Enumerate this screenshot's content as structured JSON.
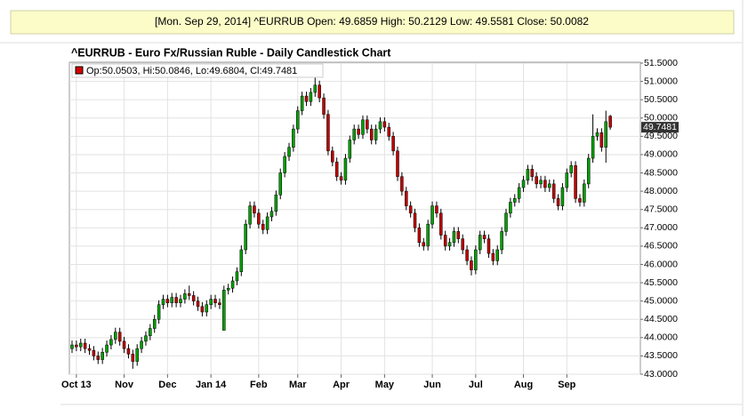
{
  "header": {
    "text": "[Mon. Sep 29, 2014] ^EURRUB Open: 49.6859 High: 50.2129 Low: 49.5581 Close: 50.0082"
  },
  "chart_data": {
    "type": "candlestick",
    "title": "^EURRUB - Euro Fx/Russian Ruble - Daily Candlestick Chart",
    "legend": "Op:50.0503, Hi:50.0846, Lo:49.6804, Cl:49.7481",
    "legend_color": "#d40000",
    "up_color": "#00a000",
    "down_color": "#c00000",
    "grid": true,
    "last_value": 49.7481,
    "ylim": [
      43,
      51.5
    ],
    "yticks": [
      {
        "value": 43,
        "label": "43.0000"
      },
      {
        "value": 43.5,
        "label": "43.5000"
      },
      {
        "value": 44,
        "label": "44.0000"
      },
      {
        "value": 44.5,
        "label": "44.5000"
      },
      {
        "value": 45,
        "label": "45.0000"
      },
      {
        "value": 45.5,
        "label": "45.5000"
      },
      {
        "value": 46,
        "label": "46.0000"
      },
      {
        "value": 46.5,
        "label": "46.5000"
      },
      {
        "value": 47,
        "label": "47.0000"
      },
      {
        "value": 47.5,
        "label": "47.5000"
      },
      {
        "value": 48,
        "label": "48.0000"
      },
      {
        "value": 48.5,
        "label": "48.5000"
      },
      {
        "value": 49,
        "label": "49.0000"
      },
      {
        "value": 49.5,
        "label": "49.5000"
      },
      {
        "value": 50,
        "label": "50.0000"
      },
      {
        "value": 50.5,
        "label": "50.5000"
      },
      {
        "value": 51,
        "label": "51.0000"
      },
      {
        "value": 51.5,
        "label": "51.5000"
      }
    ],
    "categories": [
      null,
      "Oct 13",
      null,
      null,
      null,
      null,
      null,
      null,
      null,
      null,
      null,
      null,
      "Nov",
      null,
      null,
      null,
      null,
      null,
      null,
      null,
      null,
      null,
      "Dec",
      null,
      null,
      null,
      null,
      null,
      null,
      null,
      null,
      null,
      "Jan 14",
      null,
      null,
      null,
      null,
      null,
      null,
      null,
      null,
      null,
      null,
      "Feb",
      null,
      null,
      null,
      null,
      null,
      null,
      null,
      null,
      "Mar",
      null,
      null,
      null,
      null,
      null,
      null,
      null,
      null,
      null,
      "Apr",
      null,
      null,
      null,
      null,
      null,
      null,
      null,
      null,
      null,
      "May",
      null,
      null,
      null,
      null,
      null,
      null,
      null,
      null,
      null,
      null,
      "Jun",
      null,
      null,
      null,
      null,
      null,
      null,
      null,
      null,
      null,
      "Jul",
      null,
      null,
      null,
      null,
      null,
      null,
      null,
      null,
      null,
      null,
      "Aug",
      null,
      null,
      null,
      null,
      null,
      null,
      null,
      null,
      null,
      "Sep",
      null,
      null,
      null,
      null,
      null,
      null,
      null,
      null,
      null,
      null
    ],
    "open": [
      43.7,
      43.8,
      43.75,
      43.85,
      43.7,
      43.65,
      43.5,
      43.4,
      43.6,
      43.8,
      43.95,
      44.15,
      43.9,
      43.7,
      43.55,
      43.35,
      43.7,
      43.9,
      44.05,
      44.25,
      44.5,
      44.9,
      45.05,
      44.95,
      45.1,
      44.95,
      45.05,
      45.2,
      45.15,
      45.0,
      44.85,
      44.7,
      44.9,
      45.05,
      44.95,
      44.2,
      45.3,
      45.35,
      45.55,
      45.8,
      46.4,
      47.1,
      47.6,
      47.4,
      47.1,
      46.95,
      47.3,
      47.45,
      47.9,
      48.5,
      48.95,
      49.2,
      49.7,
      50.2,
      50.6,
      50.45,
      50.7,
      50.9,
      50.55,
      50.1,
      49.1,
      48.8,
      48.4,
      48.3,
      48.9,
      49.4,
      49.7,
      49.55,
      49.95,
      49.7,
      49.4,
      49.7,
      49.9,
      49.75,
      49.5,
      49.1,
      48.4,
      48.0,
      47.6,
      47.4,
      47.0,
      46.6,
      46.5,
      47.1,
      47.6,
      47.4,
      46.8,
      46.5,
      46.6,
      46.9,
      46.7,
      46.4,
      46.1,
      45.85,
      46.4,
      46.8,
      46.7,
      46.3,
      46.1,
      46.4,
      46.9,
      47.4,
      47.7,
      47.8,
      48.1,
      48.3,
      48.6,
      48.4,
      48.2,
      48.3,
      48.1,
      48.2,
      47.8,
      47.6,
      48.1,
      48.5,
      48.7,
      47.8,
      47.7,
      48.2,
      48.9,
      49.5,
      49.6,
      49.2,
      50.0503
    ],
    "high": [
      43.92,
      43.92,
      43.97,
      43.97,
      43.82,
      43.77,
      43.62,
      43.72,
      43.92,
      44.07,
      44.27,
      44.27,
      44.02,
      43.82,
      43.67,
      43.82,
      44.02,
      44.17,
      44.37,
      44.62,
      45.02,
      45.17,
      45.17,
      45.22,
      45.22,
      45.17,
      45.32,
      45.42,
      45.27,
      45.12,
      44.97,
      45.02,
      45.17,
      45.17,
      45.07,
      45.42,
      45.47,
      45.67,
      45.92,
      46.52,
      47.22,
      47.72,
      47.72,
      47.52,
      47.22,
      47.42,
      47.57,
      48.02,
      48.62,
      49.07,
      49.32,
      49.82,
      50.32,
      50.72,
      50.72,
      50.82,
      51.1,
      51.02,
      50.67,
      50.22,
      49.22,
      48.92,
      48.52,
      49.02,
      49.52,
      49.82,
      49.82,
      50.07,
      50.07,
      49.82,
      49.82,
      50.02,
      50.02,
      49.87,
      49.62,
      49.22,
      48.52,
      48.12,
      47.72,
      47.52,
      47.12,
      46.72,
      47.22,
      47.72,
      47.72,
      47.52,
      46.92,
      46.72,
      47.02,
      47.02,
      46.82,
      46.52,
      46.22,
      46.52,
      46.92,
      46.92,
      46.82,
      46.42,
      46.52,
      47.02,
      47.52,
      47.82,
      47.92,
      48.22,
      48.42,
      48.72,
      48.72,
      48.52,
      48.42,
      48.42,
      48.32,
      48.32,
      47.92,
      48.22,
      48.62,
      48.82,
      48.82,
      47.92,
      48.32,
      49.02,
      50.1,
      49.72,
      49.72,
      50.2,
      50.0846
    ],
    "low": [
      43.58,
      43.63,
      43.63,
      43.58,
      43.53,
      43.38,
      43.28,
      43.28,
      43.48,
      43.68,
      43.83,
      43.78,
      43.58,
      43.43,
      43.15,
      43.23,
      43.58,
      43.78,
      43.93,
      44.13,
      44.38,
      44.78,
      44.83,
      44.83,
      44.83,
      44.83,
      44.93,
      45.03,
      44.88,
      44.73,
      44.58,
      44.58,
      44.78,
      44.83,
      44.78,
      44.2,
      45.18,
      45.23,
      45.43,
      45.68,
      46.28,
      46.98,
      47.28,
      46.98,
      46.83,
      46.83,
      47.18,
      47.33,
      47.78,
      48.38,
      48.83,
      49.08,
      49.58,
      50.08,
      50.33,
      50.33,
      50.58,
      50.43,
      49.98,
      48.98,
      48.68,
      48.28,
      48.18,
      48.18,
      48.78,
      49.28,
      49.43,
      49.43,
      49.58,
      49.28,
      49.28,
      49.58,
      49.63,
      49.38,
      48.98,
      48.28,
      47.88,
      47.48,
      47.28,
      46.88,
      46.48,
      46.38,
      46.38,
      46.98,
      47.28,
      46.68,
      46.38,
      46.38,
      46.48,
      46.58,
      46.28,
      45.98,
      45.7,
      45.73,
      46.28,
      46.58,
      46.18,
      45.98,
      45.98,
      46.28,
      46.78,
      47.28,
      47.58,
      47.68,
      47.98,
      48.18,
      48.28,
      48.08,
      48.08,
      47.98,
      47.98,
      47.68,
      47.48,
      47.48,
      47.98,
      48.38,
      47.68,
      47.58,
      47.58,
      48.08,
      48.78,
      49.38,
      49.08,
      48.78,
      49.6804
    ],
    "close": [
      43.8,
      43.75,
      43.85,
      43.7,
      43.65,
      43.5,
      43.4,
      43.6,
      43.8,
      43.95,
      44.15,
      43.9,
      43.7,
      43.55,
      43.35,
      43.7,
      43.9,
      44.05,
      44.25,
      44.5,
      44.9,
      45.05,
      44.95,
      45.1,
      44.95,
      45.05,
      45.2,
      45.15,
      45.0,
      44.85,
      44.7,
      44.9,
      45.05,
      44.95,
      44.9,
      45.3,
      45.35,
      45.55,
      45.8,
      46.4,
      47.1,
      47.6,
      47.4,
      47.1,
      46.95,
      47.3,
      47.45,
      47.9,
      48.5,
      48.95,
      49.2,
      49.7,
      50.2,
      50.6,
      50.45,
      50.7,
      50.9,
      50.55,
      50.1,
      49.1,
      48.8,
      48.4,
      48.3,
      48.9,
      49.4,
      49.7,
      49.55,
      49.95,
      49.7,
      49.4,
      49.7,
      49.9,
      49.75,
      49.5,
      49.1,
      48.4,
      48.0,
      47.6,
      47.4,
      47.0,
      46.6,
      46.5,
      47.1,
      47.6,
      47.4,
      46.8,
      46.5,
      46.6,
      46.9,
      46.7,
      46.4,
      46.1,
      45.85,
      46.4,
      46.8,
      46.7,
      46.3,
      46.1,
      46.4,
      46.9,
      47.4,
      47.7,
      47.8,
      48.1,
      48.3,
      48.6,
      48.4,
      48.2,
      48.3,
      48.1,
      48.2,
      47.8,
      47.6,
      48.1,
      48.5,
      48.7,
      47.8,
      47.7,
      48.2,
      48.9,
      49.5,
      49.6,
      49.2,
      49.9,
      49.7481
    ]
  }
}
